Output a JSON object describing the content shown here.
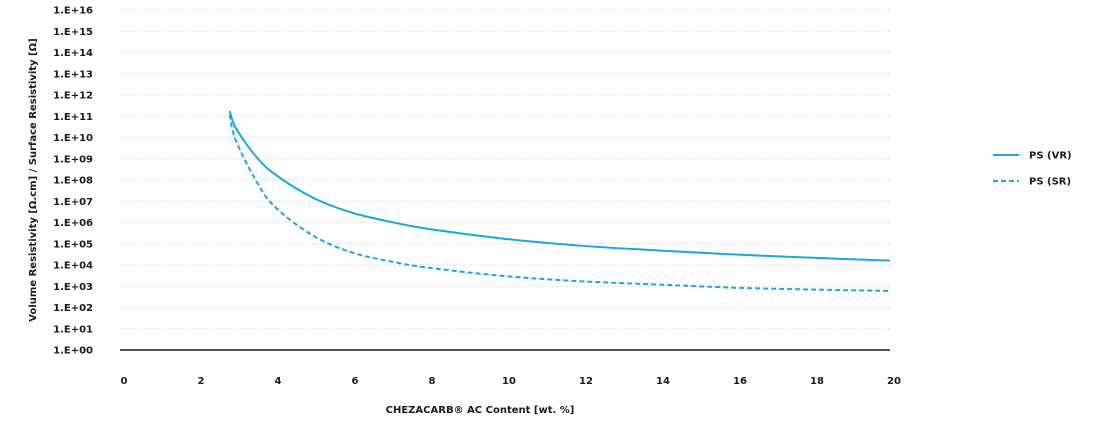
{
  "chart_data": {
    "type": "line",
    "title": "",
    "xlabel": "CHEZACARB® AC Content [wt. %]",
    "ylabel": "Volume Resistivity [Ω.cm] / Surface Resistivity [Ω]",
    "xlim": [
      0,
      20
    ],
    "ylim": [
      1,
      1e+16
    ],
    "y_scale": "log",
    "x_ticks": [
      "0",
      "2",
      "4",
      "6",
      "8",
      "10",
      "12",
      "14",
      "16",
      "18",
      "20"
    ],
    "y_ticks": [
      "1.E+00",
      "1.E+01",
      "1.E+02",
      "1.E+03",
      "1.E+04",
      "1.E+05",
      "1.E+06",
      "1.E+07",
      "1.E+08",
      "1.E+09",
      "1.E+10",
      "1.E+11",
      "1.E+12",
      "1.E+13",
      "1.E+14",
      "1.E+15",
      "1.E+16"
    ],
    "grid": "horizontal dotted",
    "legend_position": "right",
    "series": [
      {
        "name": "PS (VR)",
        "style": "solid",
        "color": "#1aa7e0",
        "x": [
          2.85,
          3.0,
          3.5,
          4.0,
          5.0,
          6.0,
          7.0,
          8.0,
          10.0,
          12.0,
          14.0,
          16.0,
          18.0,
          20.0
        ],
        "y": [
          180000000000.0,
          30000000000.0,
          1500000000.0,
          200000000.0,
          15000000.0,
          3000000.0,
          1100000.0,
          500000.0,
          170000.0,
          80000.0,
          48000.0,
          31000.0,
          22000.0,
          16000.0
        ]
      },
      {
        "name": "PS (SR)",
        "style": "dashed",
        "color": "#1aa7e0",
        "x": [
          2.85,
          3.0,
          3.5,
          4.0,
          5.0,
          6.0,
          7.0,
          8.0,
          10.0,
          12.0,
          14.0,
          16.0,
          18.0,
          20.0
        ],
        "y": [
          120000000000.0,
          8000000000.0,
          120000000.0,
          6000000.0,
          250000.0,
          40000.0,
          15000.0,
          7500.0,
          3000.0,
          1700.0,
          1200.0,
          850.0,
          700.0,
          600.0
        ]
      }
    ]
  }
}
